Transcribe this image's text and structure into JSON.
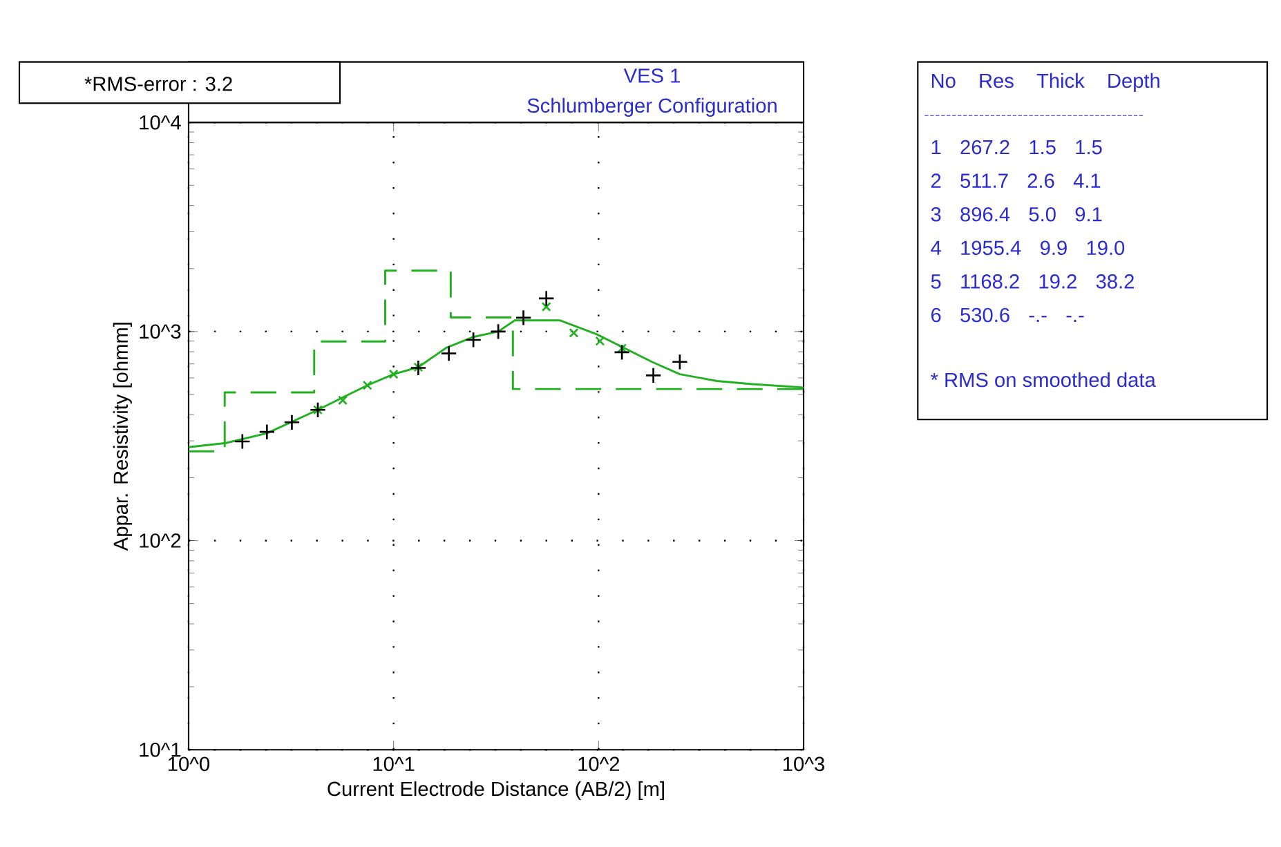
{
  "chart_data": {
    "type": "line",
    "title": "VES 1",
    "subtitle": "Schlumberger Configuration",
    "xlabel": "Current Electrode Distance (AB/2) [m]",
    "ylabel": "Appar. Resistivity [ohmm]",
    "log": "xy",
    "grid": true,
    "xlim": [
      1,
      1000
    ],
    "ylim": [
      10,
      10000
    ],
    "xticks": [
      {
        "value": 1,
        "label": "10^0"
      },
      {
        "value": 10,
        "label": "10^1"
      },
      {
        "value": 100,
        "label": "10^2"
      },
      {
        "value": 1000,
        "label": "10^3"
      }
    ],
    "yticks": [
      {
        "value": 10,
        "label": "10^1"
      },
      {
        "value": 100,
        "label": "10^2"
      },
      {
        "value": 1000,
        "label": "10^3"
      },
      {
        "value": 10000,
        "label": "10^4"
      }
    ],
    "series": [
      {
        "type": "step",
        "color": "#22b022",
        "line_style": "dashed",
        "marker": "none",
        "x": [
          1,
          1.5,
          4.1,
          9.1,
          19.0,
          38.2,
          1000
        ],
        "values": [
          267.2,
          511.7,
          896.4,
          1955.4,
          1168.2,
          530.6,
          530.6
        ]
      },
      {
        "color": "#22b022",
        "line_style": "solid",
        "marker": "none",
        "x": [
          1,
          1.52,
          2.41,
          4.27,
          7.45,
          10,
          13.2,
          18,
          24.5,
          32.4,
          39,
          65,
          98,
          134,
          182,
          249,
          378,
          563,
          1000
        ],
        "values": [
          280,
          293,
          326,
          422,
          553,
          625,
          675,
          834,
          942,
          1000,
          1130,
          1130,
          970,
          832,
          716,
          625,
          580,
          560,
          540
        ]
      },
      {
        "type": "scatter",
        "color": "#22b022",
        "marker": "cross",
        "x": [
          4.27,
          5.65,
          7.45,
          10,
          13.2,
          55.6,
          75.7,
          101.6,
          130
        ],
        "values": [
          422,
          469,
          553,
          625,
          675,
          1312,
          985,
          900,
          832
        ]
      },
      {
        "type": "scatter",
        "color": "#000000",
        "marker": "plus",
        "x": [
          1.83,
          2.41,
          3.19,
          4.27,
          13.2,
          18.6,
          24.5,
          32.4,
          43,
          55.6,
          130,
          185,
          249
        ],
        "values": [
          298,
          331,
          368,
          422,
          670,
          785,
          912,
          1000,
          1164,
          1440,
          796,
          617,
          716
        ]
      }
    ],
    "annotations": [
      "*RMS-error :  3.2",
      "No    Res   Thick   Depth",
      "1   267.2    1.5    1.5",
      "2   511.7    2.6    4.1",
      "3   896.4    5.0    9.1",
      "4  1955.4    9.9   19.0",
      "5  1168.2   19.2   38.2",
      "6   530.6    -.-    -.-",
      "* RMS on smoothed data"
    ]
  }
}
